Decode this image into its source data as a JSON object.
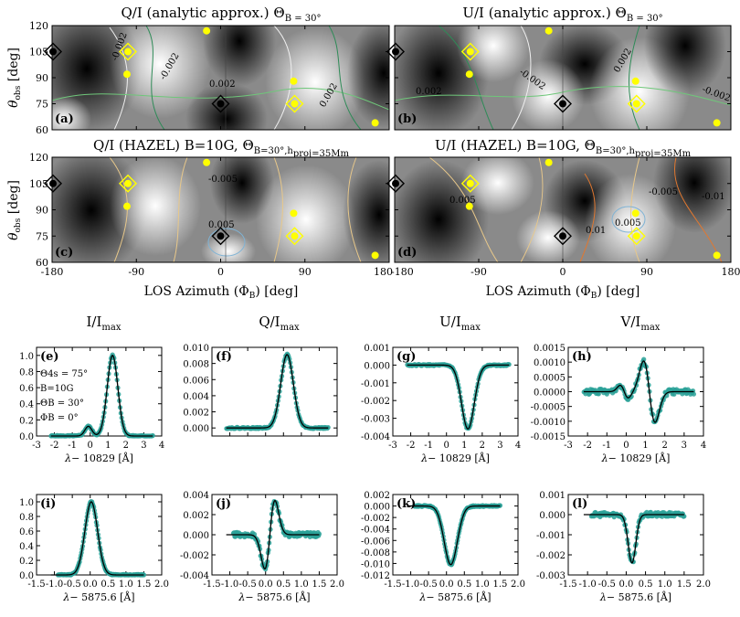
{
  "maps": {
    "titles": [
      "Q/I (analytic approx.) Θ",
      "U/I (analytic approx.) Θ",
      "Q/I (HAZEL) B=10G, Θ",
      "U/I (HAZEL) B=10G, Θ"
    ],
    "title_suffix_analytic": "B = 30°",
    "title_suffix_hazel": "B=30°,h",
    "title_suffix_hazel2": "proj=35Mm",
    "panel_labels": [
      "(a)",
      "(b)",
      "(c)",
      "(d)"
    ],
    "ylabel": "θobs [deg]",
    "ylabel_main": "θ",
    "ylabel_sub": "obs",
    "ylabel_unit": "[deg]",
    "xlabel": "LOS Azimuth (ΦB) [deg]",
    "xlabel_main": "LOS Azimuth (Φ",
    "xlabel_sub": "B",
    "xlabel_unit": ") [deg]",
    "xticks": [
      "-180",
      "-90",
      "0",
      "90",
      "180"
    ],
    "yticks": [
      "60",
      "75",
      "90",
      "105",
      "120"
    ],
    "contour_labels": {
      "a": [
        "-0.002",
        "0.002",
        "-0.002",
        "0.002"
      ],
      "b": [
        "-0.002",
        "0.002",
        "0.002",
        "-0.002"
      ],
      "c": [
        "-0.005",
        "0.005"
      ],
      "d": [
        "0.005",
        "-0.005",
        "-0.01",
        "0.01",
        "0.005"
      ]
    },
    "colors": {
      "marker_black": "#000000",
      "marker_yellow": "#ffff00",
      "contour_green": "#2e8b57",
      "contour_orange": "#e07830",
      "contour_blue": "#7fb3d5"
    }
  },
  "chart_data": [
    {
      "type": "line",
      "panel": "(e)",
      "title": "I/Imax",
      "xlabel": "λ− 10829 [Å]",
      "xlim": [
        -3,
        4
      ],
      "ylim": [
        0,
        1.1
      ],
      "xticks": [
        "-3",
        "-2",
        "-1",
        "0",
        "1",
        "2",
        "3",
        "4"
      ],
      "yticks": [
        "0.0",
        "0.2",
        "0.4",
        "0.6",
        "0.8",
        "1.0"
      ],
      "annotations": [
        "Θ4s = 75°",
        "B=10G",
        "ΘB = 30°",
        "ΦB = 0°"
      ],
      "profile": {
        "kind": "gauss2",
        "c1": 1.25,
        "w1": 0.42,
        "a1": 1.0,
        "c2": -0.1,
        "w2": 0.28,
        "a2": 0.12
      }
    },
    {
      "type": "line",
      "panel": "(f)",
      "title": "Q/Imax",
      "xlabel": "",
      "xlim": [
        -3,
        4
      ],
      "ylim": [
        -0.001,
        0.01
      ],
      "xticks": [],
      "yticks": [
        "0.000",
        "0.002",
        "0.004",
        "0.006",
        "0.008",
        "0.010"
      ],
      "profile": {
        "kind": "gauss",
        "c": 1.2,
        "w": 0.5,
        "a": 0.0091
      }
    },
    {
      "type": "line",
      "panel": "(g)",
      "title": "U/Imax",
      "xlabel": "λ− 10829 [Å]",
      "xlim": [
        -3,
        4
      ],
      "ylim": [
        -0.004,
        0.001
      ],
      "xticks": [
        "-3",
        "-2",
        "-1",
        "0",
        "1",
        "2",
        "3",
        "4"
      ],
      "yticks": [
        "0.001",
        "0.000",
        "-0.001",
        "-0.002",
        "-0.003",
        "-0.004"
      ],
      "profile": {
        "kind": "gauss",
        "c": 1.2,
        "w": 0.5,
        "a": -0.0036
      }
    },
    {
      "type": "line",
      "panel": "(h)",
      "title": "V/Imax",
      "xlabel": "λ− 10829 [Å]",
      "xlim": [
        -3,
        4
      ],
      "ylim": [
        -0.0015,
        0.0015
      ],
      "xticks": [
        "-3",
        "-2",
        "-1",
        "0",
        "1",
        "2",
        "3",
        "4"
      ],
      "yticks": [
        "0.0015",
        "0.0010",
        "0.0005",
        "0.0000",
        "-0.0005",
        "-0.0010",
        "-0.0015"
      ],
      "profile": {
        "kind": "v",
        "c": 1.2,
        "w": 0.42,
        "a": 0.0011,
        "c2": -0.1,
        "a2": 0.00025
      }
    },
    {
      "type": "line",
      "panel": "(i)",
      "title": "",
      "xlabel": "λ− 5875.6 [Å]",
      "xlim": [
        -1.5,
        2.0
      ],
      "ylim": [
        0,
        1.1
      ],
      "xticks": [
        "-1.5",
        "-1.0",
        "-0.5",
        "0.0",
        "0.5",
        "1.0",
        "1.5",
        "2.0"
      ],
      "yticks": [
        "0.0",
        "0.2",
        "0.4",
        "0.6",
        "0.8",
        "1.0"
      ],
      "profile": {
        "kind": "gauss",
        "c": 0.03,
        "w": 0.25,
        "a": 1.0
      }
    },
    {
      "type": "line",
      "panel": "(j)",
      "title": "",
      "xlabel": "λ− 5875.6 [Å]",
      "xlim": [
        -1.5,
        2.0
      ],
      "ylim": [
        -0.004,
        0.004
      ],
      "xticks": [
        "-1.5",
        "-1.0",
        "-0.5",
        "0.0",
        "0.5",
        "1.0",
        "1.5",
        "2.0"
      ],
      "yticks": [
        "0.004",
        "0.002",
        "0.000",
        "-0.002",
        "-0.004"
      ],
      "profile": {
        "kind": "v",
        "c": 0.12,
        "w": 0.2,
        "a": -0.0036,
        "c2": 0,
        "a2": 0
      }
    },
    {
      "type": "line",
      "panel": "(k)",
      "title": "",
      "xlabel": "λ− 5875.6 [Å]",
      "xlim": [
        -1.5,
        2.0
      ],
      "ylim": [
        -0.012,
        0.002
      ],
      "xticks": [
        "-1.5",
        "-1.0",
        "-0.5",
        "0.0",
        "0.5",
        "1.0",
        "1.5",
        "2.0"
      ],
      "yticks": [
        "0.002",
        "0.000",
        "-0.002",
        "-0.004",
        "-0.006",
        "-0.008",
        "-0.010",
        "-0.012"
      ],
      "profile": {
        "kind": "gauss",
        "c": 0.12,
        "w": 0.26,
        "a": -0.0102
      }
    },
    {
      "type": "line",
      "panel": "(l)",
      "title": "",
      "xlabel": "λ− 5875.6 [Å]",
      "xlim": [
        -1.5,
        2.0
      ],
      "ylim": [
        -0.003,
        0.001
      ],
      "xticks": [
        "-1.5",
        "-1.0",
        "-0.5",
        "0.0",
        "0.5",
        "1.0",
        "1.5",
        "2.0"
      ],
      "yticks": [
        "0.001",
        "0.000",
        "-0.001",
        "-0.002",
        "-0.003"
      ],
      "profile": {
        "kind": "gauss",
        "c": 0.15,
        "w": 0.14,
        "a": -0.0024
      }
    }
  ]
}
